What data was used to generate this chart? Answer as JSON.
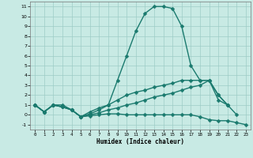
{
  "background_color": "#c8eae4",
  "grid_color": "#9eccc6",
  "line_color": "#1a7a6e",
  "line_width": 1.0,
  "marker": "D",
  "marker_size": 2.5,
  "xlabel": "Humidex (Indice chaleur)",
  "xlim": [
    -0.5,
    23.5
  ],
  "ylim": [
    -1.5,
    11.5
  ],
  "yticks": [
    -1,
    0,
    1,
    2,
    3,
    4,
    5,
    6,
    7,
    8,
    9,
    10,
    11
  ],
  "xticks": [
    0,
    1,
    2,
    3,
    4,
    5,
    6,
    7,
    8,
    9,
    10,
    11,
    12,
    13,
    14,
    15,
    16,
    17,
    18,
    19,
    20,
    21,
    22,
    23
  ],
  "series": [
    {
      "x": [
        0,
        1,
        2,
        3,
        4,
        5,
        6,
        7,
        8,
        9,
        10,
        11,
        12,
        13,
        14,
        15,
        16,
        17,
        18,
        19,
        20,
        21
      ],
      "y": [
        1,
        0.3,
        1.0,
        1.0,
        0.5,
        -0.2,
        0.3,
        0.7,
        1.0,
        3.5,
        6.0,
        8.5,
        10.3,
        11.0,
        11.0,
        10.8,
        9.0,
        5.0,
        3.5,
        3.5,
        2.0,
        1.0
      ]
    },
    {
      "x": [
        0,
        1,
        2,
        3,
        4,
        5,
        6,
        7,
        8,
        9,
        10,
        11,
        12,
        13,
        14,
        15,
        16,
        17,
        18,
        19,
        20,
        21,
        22
      ],
      "y": [
        1,
        0.3,
        1.0,
        0.8,
        0.5,
        -0.2,
        0.0,
        0.2,
        0.5,
        0.7,
        1.0,
        1.2,
        1.5,
        1.8,
        2.0,
        2.2,
        2.5,
        2.8,
        3.0,
        3.5,
        2.0,
        1.0,
        0.0
      ]
    },
    {
      "x": [
        0,
        1,
        2,
        3,
        4,
        5,
        6,
        7,
        8,
        9,
        10,
        11,
        12,
        13,
        14,
        15,
        16,
        17,
        18,
        19,
        20,
        21,
        22,
        23
      ],
      "y": [
        1,
        0.3,
        1.0,
        0.8,
        0.5,
        -0.2,
        -0.1,
        0.0,
        0.1,
        0.1,
        0.0,
        0.0,
        0.0,
        0.0,
        0.0,
        0.0,
        0.0,
        0.0,
        -0.2,
        -0.5,
        -0.6,
        -0.6,
        -0.8,
        -1.0
      ]
    },
    {
      "x": [
        0,
        1,
        2,
        3,
        4,
        5,
        6,
        7,
        8,
        9,
        10,
        11,
        12,
        13,
        14,
        15,
        16,
        17,
        18,
        19,
        20,
        21
      ],
      "y": [
        1,
        0.3,
        1.0,
        0.8,
        0.5,
        -0.2,
        0.1,
        0.5,
        1.0,
        1.5,
        2.0,
        2.3,
        2.5,
        2.8,
        3.0,
        3.2,
        3.5,
        3.5,
        3.5,
        3.5,
        1.5,
        1.0
      ]
    }
  ]
}
